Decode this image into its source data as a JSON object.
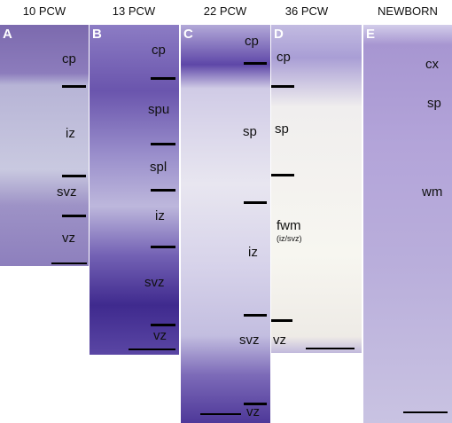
{
  "panels": [
    {
      "header": "10 PCW",
      "letter": "A",
      "labels": [
        "cp",
        "iz",
        "svz",
        "vz"
      ]
    },
    {
      "header": "13 PCW",
      "letter": "B",
      "labels": [
        "cp",
        "spu",
        "spl",
        "iz",
        "svz",
        "vz"
      ]
    },
    {
      "header": "22 PCW",
      "letter": "C",
      "labels": [
        "cp",
        "sp",
        "iz",
        "svz",
        "vz"
      ]
    },
    {
      "header": "36 PCW",
      "letter": "D",
      "labels": [
        "cp",
        "sp",
        "fwm",
        "(iz/svz)",
        "vz"
      ]
    },
    {
      "header": "NEWBORN",
      "letter": "E",
      "labels": [
        "cx",
        "sp",
        "wm"
      ]
    }
  ]
}
